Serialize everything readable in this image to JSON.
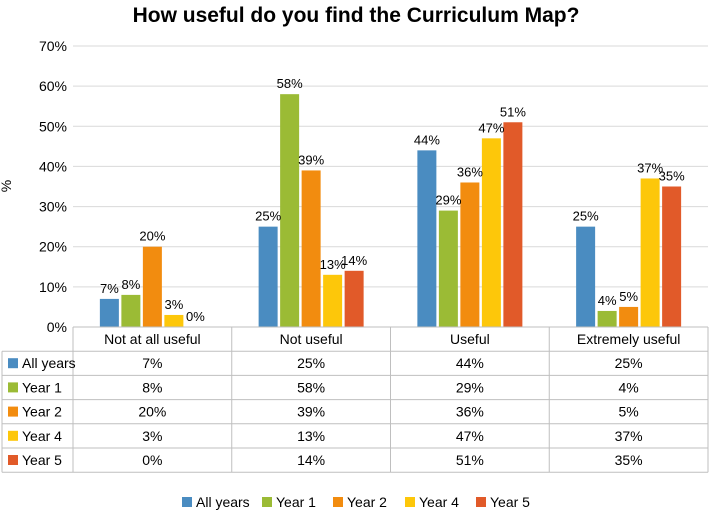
{
  "chart_data": {
    "type": "bar",
    "title": "How useful do you find the Curriculum Map?",
    "ylabel": "%",
    "xlabel": "",
    "ylim": [
      0,
      70
    ],
    "y_ticks": [
      "0%",
      "10%",
      "20%",
      "30%",
      "40%",
      "50%",
      "60%",
      "70%"
    ],
    "categories": [
      "Not at all useful",
      "Not useful",
      "Useful",
      "Extremely useful"
    ],
    "grid": true,
    "legend_position": "bottom",
    "data_table": true,
    "series": [
      {
        "name": "All years",
        "color": "#4a8cc1",
        "values": [
          7,
          25,
          44,
          25
        ],
        "labels": [
          "7%",
          "25%",
          "44%",
          "25%"
        ]
      },
      {
        "name": "Year 1",
        "color": "#9bbb35",
        "values": [
          8,
          58,
          29,
          4
        ],
        "labels": [
          "8%",
          "58%",
          "29%",
          "4%"
        ]
      },
      {
        "name": "Year 2",
        "color": "#f28c0f",
        "values": [
          20,
          39,
          36,
          5
        ],
        "labels": [
          "20%",
          "39%",
          "36%",
          "5%"
        ]
      },
      {
        "name": "Year 4",
        "color": "#fdc70a",
        "values": [
          3,
          13,
          47,
          37
        ],
        "labels": [
          "3%",
          "13%",
          "47%",
          "37%"
        ]
      },
      {
        "name": "Year 5",
        "color": "#e15a29",
        "values": [
          0,
          14,
          51,
          35
        ],
        "labels": [
          "0%",
          "14%",
          "51%",
          "35%"
        ]
      }
    ]
  }
}
